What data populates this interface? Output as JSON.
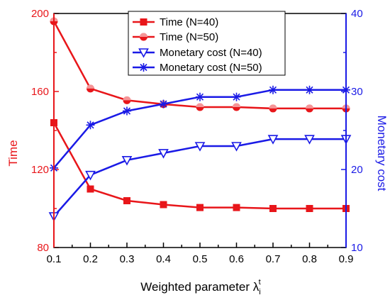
{
  "chart_data": {
    "type": "line",
    "xlabel": "Weighted parameter λ",
    "xlabel_sub": "i",
    "xlabel_sup": "t",
    "ylabel_left": "Time",
    "ylabel_right": "Monetary cost",
    "x": [
      0.1,
      0.2,
      0.3,
      0.4,
      0.5,
      0.6,
      0.7,
      0.8,
      0.9
    ],
    "x_ticks": [
      "0.1",
      "0.2",
      "0.3",
      "0.4",
      "0.5",
      "0.6",
      "0.7",
      "0.8",
      "0.9"
    ],
    "ylim_left": [
      80,
      200
    ],
    "y_ticks_left": [
      "80",
      "120",
      "160",
      "200"
    ],
    "ylim_right": [
      10,
      40
    ],
    "y_ticks_right": [
      "10",
      "20",
      "30",
      "40"
    ],
    "grid": false,
    "legend_position": "top-center",
    "colors": {
      "left_axis": "#e8161a",
      "right_axis": "#1a1ae6",
      "frame": "#000000"
    },
    "series": [
      {
        "name": "Time (N=40)",
        "axis": "left",
        "marker": "square",
        "color": "#e8161a",
        "values": [
          144,
          110,
          104,
          102,
          100.5,
          100.5,
          100,
          100,
          100
        ]
      },
      {
        "name": "Time (N=50)",
        "axis": "left",
        "marker": "circle",
        "color": "#e8161a",
        "values": [
          196,
          161.5,
          155.5,
          153.5,
          152,
          152,
          151.3,
          151.3,
          151.3
        ]
      },
      {
        "name": "Monetary cost (N=40)",
        "axis": "right",
        "marker": "triangle-down",
        "color": "#1a1ae6",
        "values": [
          14,
          19.3,
          21.2,
          22.1,
          23,
          23,
          23.9,
          23.9,
          23.9
        ]
      },
      {
        "name": "Monetary cost (N=50)",
        "axis": "right",
        "marker": "asterisk",
        "color": "#1a1ae6",
        "values": [
          20.2,
          25.7,
          27.5,
          28.4,
          29.3,
          29.3,
          30.2,
          30.2,
          30.2
        ]
      }
    ]
  }
}
